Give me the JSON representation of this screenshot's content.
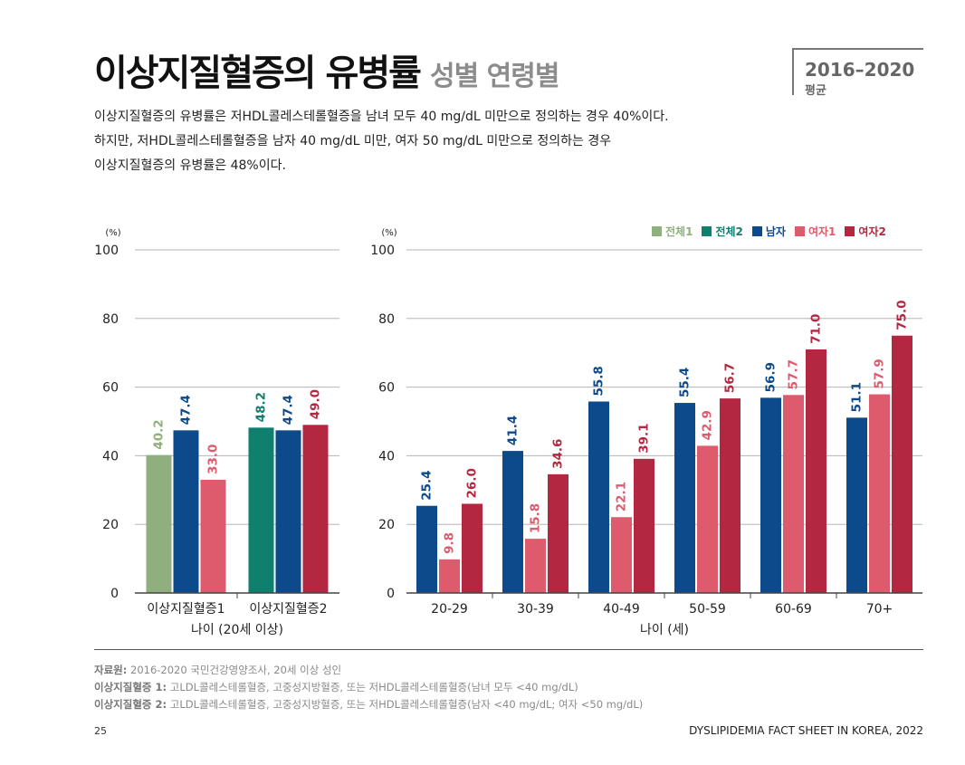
{
  "page": {
    "title": "이상지질혈증의 유병률",
    "subtitle": "성별 연령별",
    "period": "2016–2020",
    "period_label": "평균",
    "description": [
      "이상지질혈증의 유병률은 저HDL콜레스테롤혈증을 남녀 모두 40 mg/dL 미만으로 정의하는 경우 40%이다.",
      "하지만, 저HDL콜레스테롤혈증을 남자 40 mg/dL 미만, 여자 50 mg/dL 미만으로 정의하는 경우",
      "이상지질혈증의 유병률은 48%이다."
    ],
    "notes": [
      {
        "label": "자료원:",
        "text": " 2016-2020 국민건강영양조사, 20세 이상 성인"
      },
      {
        "label": "이상지질혈증 1:",
        "text": " 고LDL콜레스테롤혈증, 고중성지방혈증, 또는 저HDL콜레스테롤혈증(남녀 모두 <40 mg/dL)"
      },
      {
        "label": "이상지질혈증 2:",
        "text": " 고LDL콜레스테롤혈증, 고중성지방혈증, 또는 저HDL콜레스테롤혈증(남자 <40 mg/dL; 여자 <50 mg/dL)"
      }
    ],
    "page_number": "25",
    "running_title": "DYSLIPIDEMIA FACT SHEET IN KOREA, 2022"
  },
  "colors": {
    "전체1": "#8fb07e",
    "전체2": "#0f7f6e",
    "남자": "#0d4a8b",
    "여자1": "#dd5b6c",
    "여자2": "#b32840"
  },
  "legend": [
    "전체1",
    "전체2",
    "남자",
    "여자1",
    "여자2"
  ],
  "chart_data": [
    {
      "type": "bar",
      "unit": "(%)",
      "ylim": [
        0,
        100
      ],
      "yticks": [
        0,
        20,
        40,
        60,
        80,
        100
      ],
      "xlabel": "나이 (20세 이상)",
      "groups": [
        {
          "category": "이상지질혈증1",
          "bars": [
            {
              "series": "전체1",
              "value": 40.2
            },
            {
              "series": "남자",
              "value": 47.4
            },
            {
              "series": "여자1",
              "value": 33.0
            }
          ]
        },
        {
          "category": "이상지질혈증2",
          "bars": [
            {
              "series": "전체2",
              "value": 48.2
            },
            {
              "series": "남자",
              "value": 47.4
            },
            {
              "series": "여자2",
              "value": 49.0
            }
          ]
        }
      ]
    },
    {
      "type": "bar",
      "unit": "(%)",
      "ylim": [
        0,
        100
      ],
      "yticks": [
        0,
        20,
        40,
        60,
        80,
        100
      ],
      "xlabel": "나이 (세)",
      "categories": [
        "20-29",
        "30-39",
        "40-49",
        "50-59",
        "60-69",
        "70+"
      ],
      "series": [
        {
          "name": "남자",
          "values": [
            25.4,
            41.4,
            55.8,
            55.4,
            56.9,
            51.1
          ]
        },
        {
          "name": "여자1",
          "values": [
            9.8,
            15.8,
            22.1,
            42.9,
            57.7,
            57.9
          ]
        },
        {
          "name": "여자2",
          "values": [
            26.0,
            34.6,
            39.1,
            56.7,
            71.0,
            75.0
          ]
        }
      ]
    }
  ]
}
